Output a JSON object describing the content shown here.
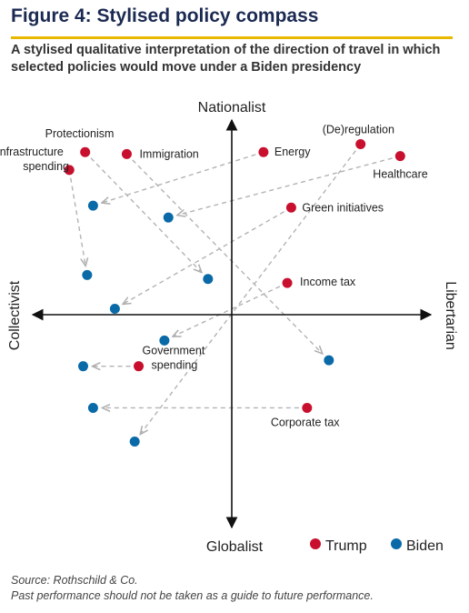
{
  "header": {
    "title": "Figure 4: Stylised policy compass",
    "subtitle": "A stylised qualitative interpretation of the direction of travel in which selected policies would move under a Biden presidency"
  },
  "chart_data": {
    "type": "scatter",
    "xlim": [
      -1,
      1
    ],
    "ylim": [
      -1,
      1
    ],
    "grid": false,
    "axes": {
      "top": "Nationalist",
      "bottom": "Globalist",
      "left": "Collectivist",
      "right": "Libertarian"
    },
    "legend": {
      "placement": "bottom-right",
      "entries": [
        {
          "name": "Trump",
          "color": "#c8102e"
        },
        {
          "name": "Biden",
          "color": "#0a6aa8"
        }
      ]
    },
    "series": [
      {
        "name": "Trump",
        "color": "#c8102e",
        "points": [
          {
            "label": "Protectionism",
            "x": -0.74,
            "y": 0.82
          },
          {
            "label": "Infrastructure spending",
            "x": -0.82,
            "y": 0.73
          },
          {
            "label": "Immigration",
            "x": -0.53,
            "y": 0.81
          },
          {
            "label": "Energy",
            "x": 0.16,
            "y": 0.82
          },
          {
            "label": "(De)regulation",
            "x": 0.65,
            "y": 0.86
          },
          {
            "label": "Healthcare",
            "x": 0.85,
            "y": 0.8
          },
          {
            "label": "Green initiatives",
            "x": 0.3,
            "y": 0.54
          },
          {
            "label": "Income tax",
            "x": 0.28,
            "y": 0.16
          },
          {
            "label": "Government spending",
            "x": -0.47,
            "y": -0.26
          },
          {
            "label": "Corporate tax",
            "x": 0.38,
            "y": -0.47
          }
        ]
      },
      {
        "name": "Biden",
        "color": "#0a6aa8",
        "points": [
          {
            "label": "Protectionism",
            "x": -0.12,
            "y": 0.18
          },
          {
            "label": "Infrastructure spending",
            "x": -0.73,
            "y": 0.2
          },
          {
            "label": "Immigration",
            "x": 0.49,
            "y": -0.23
          },
          {
            "label": "Energy",
            "x": -0.7,
            "y": 0.55
          },
          {
            "label": "(De)regulation",
            "x": -0.49,
            "y": -0.64
          },
          {
            "label": "Healthcare",
            "x": -0.32,
            "y": 0.49
          },
          {
            "label": "Green initiatives",
            "x": -0.59,
            "y": 0.03
          },
          {
            "label": "Income tax",
            "x": -0.34,
            "y": -0.13
          },
          {
            "label": "Government spending",
            "x": -0.75,
            "y": -0.26
          },
          {
            "label": "Corporate tax",
            "x": -0.7,
            "y": -0.47
          }
        ]
      }
    ]
  },
  "footer": {
    "source": "Source: Rothschild & Co.",
    "disclaimer": "Past performance should not be taken as a guide to future performance."
  }
}
